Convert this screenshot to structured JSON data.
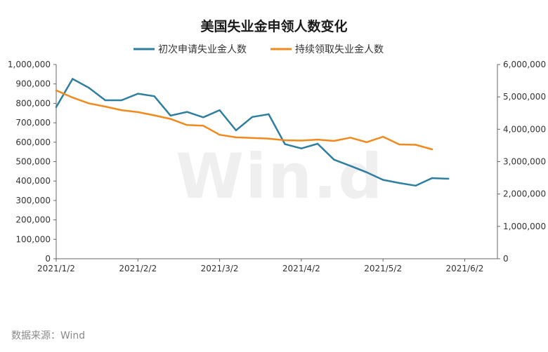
{
  "source": "数据来源：Wind",
  "watermark": "Win.d",
  "colors": {
    "initial_claims": "#2e7ea0",
    "continuing_claims": "#f08a1c",
    "axis": "#666666",
    "text": "#333333"
  },
  "chart_data": {
    "type": "line",
    "title": "美国失业金申领人数变化",
    "grid": false,
    "legend_position": "top-center",
    "x_tick_labels": [
      "2021/1/2",
      "2021/2/2",
      "2021/3/2",
      "2021/4/2",
      "2021/5/2",
      "2021/6/2"
    ],
    "x_tick_index": [
      0,
      5,
      10,
      15,
      20,
      25
    ],
    "x_count": 28,
    "y_left": {
      "range": [
        0,
        1000000
      ],
      "ticks": [
        "1,000,000",
        "900,000",
        "800,000",
        "700,000",
        "600,000",
        "500,000",
        "400,000",
        "300,000",
        "200,000",
        "100,000",
        "0"
      ],
      "tick_values": [
        1000000,
        900000,
        800000,
        700000,
        600000,
        500000,
        400000,
        300000,
        200000,
        100000,
        0
      ]
    },
    "y_right": {
      "range": [
        0,
        6000000
      ],
      "ticks": [
        "6,000,000",
        "5,000,000",
        "4,000,000",
        "3,000,000",
        "2,000,000",
        "1,000,000",
        "0"
      ],
      "tick_values": [
        6000000,
        5000000,
        4000000,
        3000000,
        2000000,
        1000000,
        0
      ]
    },
    "series": [
      {
        "name": "初次申请失业金人数",
        "axis": "left",
        "values": [
          781000,
          926000,
          880000,
          816000,
          816000,
          850000,
          837000,
          737000,
          756000,
          728000,
          765000,
          661000,
          730000,
          744000,
          590000,
          568000,
          592000,
          510000,
          478000,
          445000,
          406000,
          390000,
          376000,
          415000,
          412000
        ]
      },
      {
        "name": "持续领取失业金人数",
        "axis": "right",
        "values": [
          5200000,
          4980000,
          4800000,
          4700000,
          4590000,
          4530000,
          4430000,
          4320000,
          4130000,
          4110000,
          3830000,
          3750000,
          3730000,
          3710000,
          3660000,
          3650000,
          3680000,
          3640000,
          3740000,
          3600000,
          3770000,
          3530000,
          3520000,
          3380000
        ]
      }
    ]
  }
}
